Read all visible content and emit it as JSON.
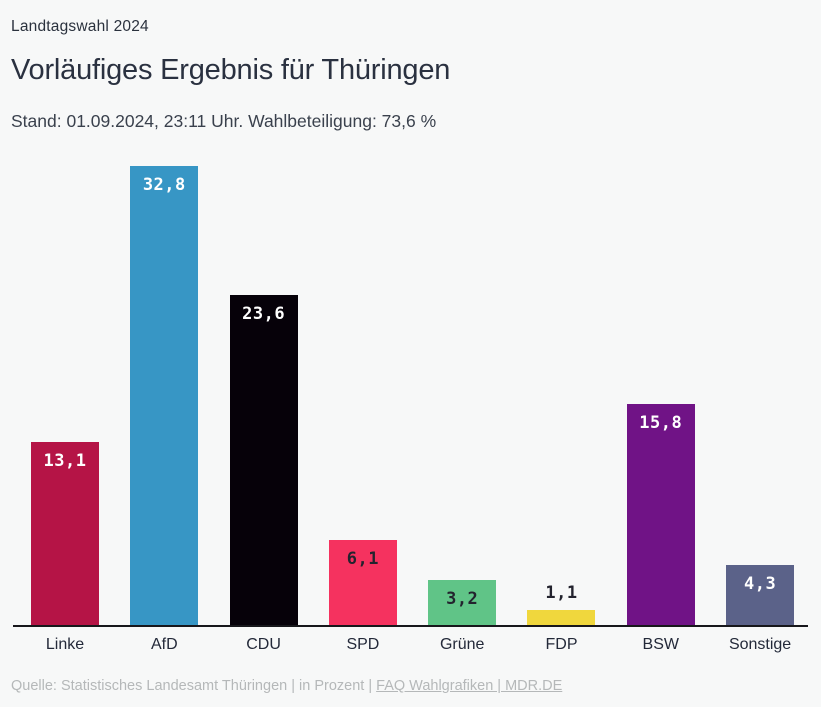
{
  "header": {
    "kicker": "Landtagswahl 2024",
    "title": "Vorläufiges Ergebnis für Thüringen",
    "status": "Stand: 01.09.2024, 23:11 Uhr. Wahlbeteiligung: 73,6 %"
  },
  "chart_data": {
    "type": "bar",
    "title": "Vorläufiges Ergebnis für Thüringen",
    "subtitle": "Stand: 01.09.2024, 23:11 Uhr. Wahlbeteiligung: 73,6 %",
    "unit_note": "in Prozent",
    "categories": [
      "Linke",
      "AfD",
      "CDU",
      "SPD",
      "Grüne",
      "FDP",
      "BSW",
      "Sonstige"
    ],
    "values": [
      13.1,
      32.8,
      23.6,
      6.1,
      3.2,
      1.1,
      15.8,
      4.3
    ],
    "value_labels": [
      "13,1",
      "32,8",
      "23,6",
      "6,1",
      "3,2",
      "1,1",
      "15,8",
      "4,3"
    ],
    "bar_colors": [
      "#b51446",
      "#3796c5",
      "#060109",
      "#f5325f",
      "#60c487",
      "#f0d73d",
      "#701386",
      "#5b6289"
    ],
    "value_label_colors": [
      "#ffffff",
      "#ffffff",
      "#ffffff",
      "#23232e",
      "#23232e",
      "#23232e",
      "#ffffff",
      "#ffffff"
    ],
    "value_label_placement": [
      "inside",
      "inside",
      "inside",
      "inside",
      "inside",
      "above",
      "inside",
      "inside"
    ],
    "ylim": [
      0,
      32.8
    ],
    "grid": false,
    "legend": "none",
    "axis_color": "#17171b",
    "background_color": "#f7f8f8"
  },
  "footer": {
    "source_text": "Quelle: Statistisches Landesamt Thüringen | in Prozent | ",
    "link_text": "FAQ Wahlgrafiken | MDR.DE"
  }
}
